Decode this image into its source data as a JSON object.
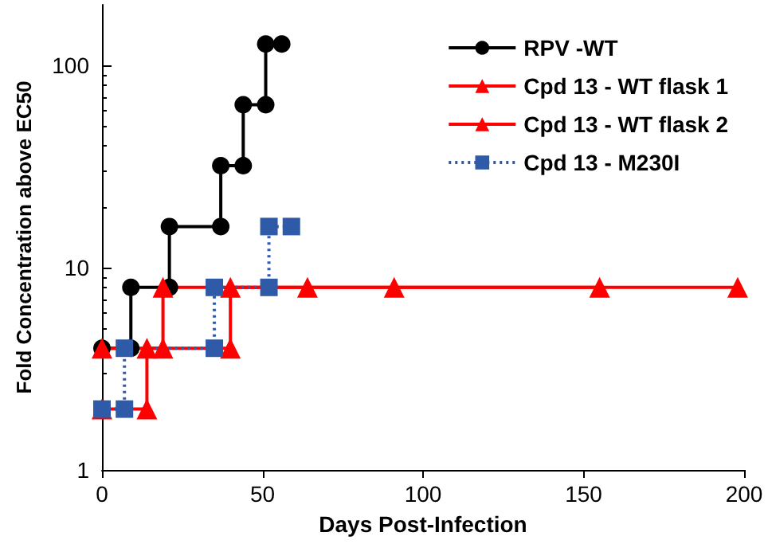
{
  "chart_data": {
    "type": "line",
    "xlabel": "Days Post-Infection",
    "ylabel": "Fold Concentration above EC50",
    "xlim": [
      0,
      200
    ],
    "xticks": [
      0,
      50,
      100,
      150,
      200
    ],
    "ylim": [
      1,
      200
    ],
    "yticks": [
      1,
      10,
      100
    ],
    "log": "y",
    "grid": false,
    "legend": "top right",
    "series": [
      {
        "name": "RPV -WT",
        "color": "#000000",
        "marker": "circle",
        "line_style": "solid",
        "x": [
          0,
          9,
          9,
          21,
          21,
          37,
          37,
          44,
          44,
          51,
          51,
          56
        ],
        "values": [
          4,
          4,
          8,
          8,
          16,
          16,
          32,
          32,
          64,
          64,
          128,
          128
        ]
      },
      {
        "name": "Cpd 13 - WT flask 1",
        "color": "#ff0000",
        "marker": "triangle",
        "line_style": "solid",
        "x": [
          0,
          14,
          14,
          19,
          19,
          64,
          91,
          155
        ],
        "values": [
          2,
          2,
          4,
          4,
          8,
          8,
          8,
          8
        ]
      },
      {
        "name": "Cpd 13 - WT flask 2",
        "color": "#ff0000",
        "marker": "triangle",
        "line_style": "solid",
        "x": [
          0,
          40,
          40,
          198
        ],
        "values": [
          4,
          4,
          8,
          8
        ]
      },
      {
        "name": "Cpd 13 - M230I",
        "color": "#2e5aa8",
        "marker": "square",
        "line_style": "dotted",
        "x": [
          0,
          7,
          7,
          35,
          35,
          52,
          52,
          59
        ],
        "values": [
          2,
          2,
          4,
          4,
          8,
          8,
          16,
          16
        ]
      }
    ]
  }
}
